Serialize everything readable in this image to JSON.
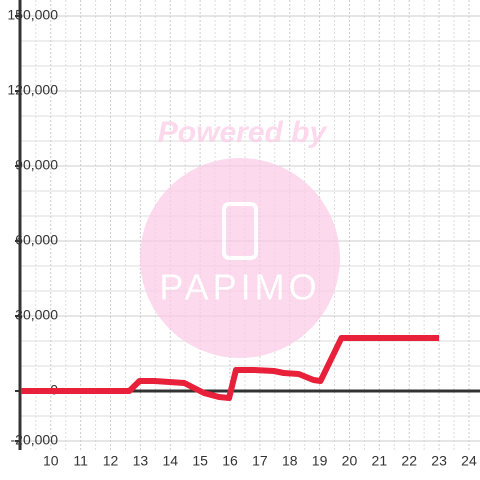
{
  "chart_data": {
    "type": "line",
    "watermark": {
      "line1": "Powered by",
      "line2": "PAPIMO"
    },
    "x": [
      9,
      12.63,
      12.97,
      13.47,
      13.97,
      14.47,
      14.8,
      15.13,
      15.63,
      15.97,
      16.2,
      16.8,
      17.47,
      17.8,
      18.3,
      18.8,
      19.03,
      19.73,
      23
    ],
    "series": [
      {
        "color": "#e8203a",
        "values": [
          0,
          0,
          4000,
          4000,
          3600,
          3200,
          1200,
          -800,
          -2400,
          -2800,
          8400,
          8400,
          8000,
          7200,
          6800,
          4400,
          4000,
          21200,
          21200
        ]
      }
    ],
    "xlim": [
      8.97,
      24.37
    ],
    "xticks": [
      10,
      11,
      12,
      13,
      14,
      15,
      16,
      17,
      18,
      19,
      20,
      21,
      22,
      23,
      24
    ],
    "x_minor_ticks": [
      9.5,
      10.5,
      11.5,
      12.5,
      13.5,
      14.5,
      15.5,
      16.5,
      17.5,
      18.5,
      19.5,
      20.5,
      21.5,
      22.5,
      23.5
    ],
    "ylim": [
      -20000,
      150000
    ],
    "yticks": [
      {
        "value": -20000,
        "label": "-20,000"
      },
      0,
      {
        "value": 30000,
        "label": "30,000"
      },
      {
        "value": 60000,
        "label": "60,000"
      },
      {
        "value": 90000,
        "label": "90,000"
      },
      {
        "value": 120000,
        "label": "120,000"
      },
      {
        "value": 150000,
        "label": "150,000"
      }
    ],
    "y_minor_ticks": [
      -10000,
      10000,
      20000,
      40000,
      50000,
      70000,
      80000,
      100000,
      110000,
      130000,
      140000
    ],
    "grid": true
  }
}
